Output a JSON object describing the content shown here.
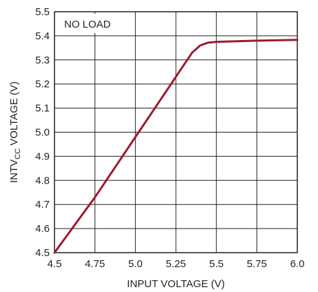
{
  "chart_data": {
    "type": "line",
    "annotation": "NO LOAD",
    "xlabel": "INPUT VOLTAGE (V)",
    "ylabel": {
      "main": "INTV",
      "sub": "CC",
      "rest": " VOLTAGE (V)"
    },
    "xlim": [
      4.5,
      6.0
    ],
    "ylim": [
      4.5,
      5.5
    ],
    "x_ticks": [
      "4.5",
      "4.75",
      "5.0",
      "5.25",
      "5.5",
      "5.75",
      "6.0"
    ],
    "y_ticks": [
      "5.5",
      "5.4",
      "5.3",
      "5.2",
      "5.1",
      "5.0",
      "4.9",
      "4.8",
      "4.7",
      "4.6",
      "4.5"
    ],
    "grid": true,
    "line_color": "#9b1b30",
    "series": [
      {
        "x": [
          4.5,
          4.75,
          5.0,
          5.2,
          5.3,
          5.35,
          5.4,
          5.45,
          5.5,
          5.75,
          6.0
        ],
        "y": [
          4.5,
          4.73,
          4.98,
          5.18,
          5.28,
          5.33,
          5.36,
          5.372,
          5.375,
          5.38,
          5.383
        ]
      }
    ]
  }
}
